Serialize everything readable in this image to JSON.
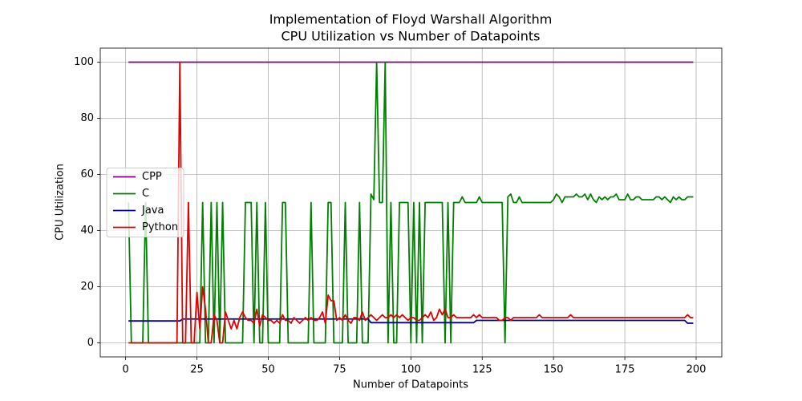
{
  "chart_data": {
    "type": "line",
    "title": "Implementation of Floyd Warshall Algorithm",
    "subtitle": "CPU Utilization vs Number of Datapoints",
    "xlabel": "Number of Datapoints",
    "ylabel": "CPU Utilization",
    "xlim": [
      -8.9,
      209
    ],
    "ylim": [
      -5,
      105
    ],
    "xticks": [
      0,
      25,
      50,
      75,
      100,
      125,
      150,
      175,
      200
    ],
    "yticks": [
      0,
      20,
      40,
      60,
      80,
      100
    ],
    "grid": true,
    "legend": "center left",
    "x": [
      1,
      2,
      3,
      4,
      5,
      6,
      7,
      8,
      9,
      10,
      11,
      12,
      13,
      14,
      15,
      16,
      17,
      18,
      19,
      20,
      21,
      22,
      23,
      24,
      25,
      26,
      27,
      28,
      29,
      30,
      31,
      32,
      33,
      34,
      35,
      36,
      37,
      38,
      39,
      40,
      41,
      42,
      43,
      44,
      45,
      46,
      47,
      48,
      49,
      50,
      51,
      52,
      53,
      54,
      55,
      56,
      57,
      58,
      59,
      60,
      61,
      62,
      63,
      64,
      65,
      66,
      67,
      68,
      69,
      70,
      71,
      72,
      73,
      74,
      75,
      76,
      77,
      78,
      79,
      80,
      81,
      82,
      83,
      84,
      85,
      86,
      87,
      88,
      89,
      90,
      91,
      92,
      93,
      94,
      95,
      96,
      97,
      98,
      99,
      100,
      101,
      102,
      103,
      104,
      105,
      106,
      107,
      108,
      109,
      110,
      111,
      112,
      113,
      114,
      115,
      116,
      117,
      118,
      119,
      120,
      121,
      122,
      123,
      124,
      125,
      126,
      127,
      128,
      129,
      130,
      131,
      132,
      133,
      134,
      135,
      136,
      137,
      138,
      139,
      140,
      141,
      142,
      143,
      144,
      145,
      146,
      147,
      148,
      149,
      150,
      151,
      152,
      153,
      154,
      155,
      156,
      157,
      158,
      159,
      160,
      161,
      162,
      163,
      164,
      165,
      166,
      167,
      168,
      169,
      170,
      171,
      172,
      173,
      174,
      175,
      176,
      177,
      178,
      179,
      180,
      181,
      182,
      183,
      184,
      185,
      186,
      187,
      188,
      189,
      190,
      191,
      192,
      193,
      194,
      195,
      196,
      197,
      198,
      199
    ],
    "series": [
      {
        "name": "CPP",
        "color": "#800080",
        "values": [
          100,
          100,
          100,
          100,
          100,
          100,
          100,
          100,
          100,
          100,
          100,
          100,
          100,
          100,
          100,
          100,
          100,
          100,
          100,
          100,
          100,
          100,
          100,
          100,
          100,
          100,
          100,
          100,
          100,
          100,
          100,
          100,
          100,
          100,
          100,
          100,
          100,
          100,
          100,
          100,
          100,
          100,
          100,
          100,
          100,
          100,
          100,
          100,
          100,
          100,
          100,
          100,
          100,
          100,
          100,
          100,
          100,
          100,
          100,
          100,
          100,
          100,
          100,
          100,
          100,
          100,
          100,
          100,
          100,
          100,
          100,
          100,
          100,
          100,
          100,
          100,
          100,
          100,
          100,
          100,
          100,
          100,
          100,
          100,
          100,
          100,
          100,
          100,
          100,
          100,
          100,
          100,
          100,
          100,
          100,
          100,
          100,
          100,
          100,
          100,
          100,
          100,
          100,
          100,
          100,
          100,
          100,
          100,
          100,
          100,
          100,
          100,
          100,
          100,
          100,
          100,
          100,
          100,
          100,
          100,
          100,
          100,
          100,
          100,
          100,
          100,
          100,
          100,
          100,
          100,
          100,
          100,
          100,
          100,
          100,
          100,
          100,
          100,
          100,
          100,
          100,
          100,
          100,
          100,
          100,
          100,
          100,
          100,
          100,
          100,
          100,
          100,
          100,
          100,
          100,
          100,
          100,
          100,
          100,
          100,
          100,
          100,
          100,
          100,
          100,
          100,
          100,
          100,
          100,
          100,
          100,
          100,
          100,
          100,
          100,
          100,
          100,
          100,
          100,
          100,
          100,
          100,
          100,
          100,
          100,
          100,
          100,
          100,
          100,
          100,
          100,
          100,
          100,
          100,
          100,
          100,
          100,
          100,
          100
        ]
      },
      {
        "name": "C",
        "color": "#008000",
        "values": [
          50,
          0,
          0,
          0,
          0,
          0,
          50,
          0,
          0,
          0,
          0,
          0,
          0,
          0,
          0,
          0,
          0,
          0,
          0,
          0,
          0,
          0,
          0,
          0,
          0,
          0,
          50,
          0,
          0,
          50,
          0,
          50,
          0,
          50,
          0,
          0,
          0,
          0,
          0,
          0,
          0,
          50,
          50,
          50,
          0,
          50,
          0,
          0,
          50,
          0,
          0,
          0,
          0,
          0,
          50,
          50,
          0,
          0,
          0,
          0,
          0,
          0,
          0,
          0,
          50,
          0,
          0,
          0,
          0,
          0,
          50,
          50,
          0,
          0,
          0,
          0,
          50,
          0,
          0,
          0,
          0,
          50,
          0,
          0,
          0,
          53,
          51,
          100,
          50,
          50,
          100,
          0,
          50,
          0,
          0,
          50,
          50,
          50,
          50,
          0,
          50,
          0,
          50,
          0,
          50,
          50,
          50,
          50,
          50,
          50,
          50,
          0,
          50,
          0,
          50,
          50,
          50,
          52,
          50,
          50,
          50,
          50,
          50,
          52,
          50,
          50,
          50,
          50,
          50,
          50,
          50,
          50,
          0,
          52,
          53,
          50,
          50,
          52,
          50,
          50,
          50,
          50,
          50,
          50,
          50,
          50,
          50,
          50,
          50,
          51,
          53,
          52,
          50,
          52,
          52,
          52,
          52,
          53,
          52,
          52,
          53,
          51,
          53,
          51,
          50,
          52,
          51,
          52,
          51,
          52,
          52,
          53,
          51,
          51,
          51,
          53,
          51,
          51,
          52,
          52,
          51,
          51,
          51,
          51,
          51,
          52,
          52,
          51,
          52,
          51,
          50,
          52,
          51,
          52,
          51,
          51,
          52,
          52,
          52
        ]
      },
      {
        "name": "Java",
        "color": "#00008b",
        "values": [
          7.8,
          7.8,
          7.8,
          7.8,
          7.8,
          7.8,
          7.8,
          7.8,
          7.8,
          7.8,
          7.8,
          7.8,
          7.8,
          7.8,
          7.8,
          7.8,
          7.8,
          7.8,
          7.8,
          8.5,
          8.5,
          8.5,
          8.5,
          8.5,
          8.5,
          8.5,
          8.5,
          8.5,
          8.5,
          8.5,
          8.5,
          8.5,
          8.5,
          8.5,
          8.5,
          8.5,
          8.5,
          8.5,
          8.5,
          8.5,
          8.5,
          8.5,
          8.5,
          8.5,
          8.5,
          8.5,
          8.5,
          8.5,
          8.5,
          8.5,
          8.5,
          8.5,
          8.5,
          8.5,
          8.5,
          8.5,
          8.5,
          8.5,
          8.5,
          8.5,
          8.5,
          8.5,
          8.5,
          8.5,
          8.5,
          8.5,
          8.5,
          8.5,
          8.5,
          8.5,
          8.5,
          8.5,
          8.5,
          8.5,
          8.5,
          8.5,
          8.5,
          8.5,
          8.5,
          8.5,
          8.5,
          8.5,
          8.5,
          8.5,
          8.5,
          7.2,
          7.2,
          7.2,
          7.2,
          7.2,
          7.2,
          7.2,
          7.2,
          7.2,
          7.2,
          7.2,
          7.2,
          7.2,
          7.2,
          7.2,
          7.2,
          7.2,
          7.2,
          7.2,
          7.2,
          7.2,
          7.2,
          7.2,
          7.2,
          7.2,
          7.2,
          7.2,
          7.2,
          7.2,
          7.2,
          7.2,
          7.2,
          7.2,
          7.2,
          7.2,
          7.2,
          7.2,
          8,
          8,
          8,
          8,
          8,
          8,
          8,
          8,
          8,
          8,
          8,
          8,
          8,
          8,
          8,
          8,
          8,
          8,
          8,
          8,
          8,
          8,
          8,
          8,
          8,
          8,
          8,
          8,
          8,
          8,
          8,
          8,
          8,
          8,
          8,
          8,
          8,
          8,
          8,
          8,
          8,
          8,
          8,
          8,
          8,
          8,
          8,
          8,
          8,
          8,
          8,
          8,
          8,
          8,
          8,
          8,
          8,
          8,
          8,
          8,
          8,
          8,
          8,
          8,
          8,
          8,
          8,
          8,
          8,
          8,
          8,
          8,
          8,
          8,
          7,
          7,
          7
        ]
      },
      {
        "name": "Python",
        "color": "#e00000",
        "values": [
          0,
          0,
          0,
          0,
          0,
          0,
          0,
          0,
          0,
          0,
          0,
          0,
          0,
          0,
          0,
          0,
          0,
          0,
          100,
          0,
          0,
          50,
          0,
          0,
          18,
          5,
          20,
          12,
          0,
          0,
          10,
          8,
          0,
          0,
          11,
          8,
          5,
          8,
          5,
          9,
          11,
          9,
          8,
          8,
          7,
          12,
          6,
          10,
          9,
          8,
          8,
          7,
          8,
          7,
          10,
          8,
          8,
          7,
          9,
          8,
          7,
          8,
          9,
          8,
          9,
          8,
          8,
          9,
          11,
          7,
          17,
          15,
          15,
          8,
          9,
          8,
          10,
          8,
          7,
          9,
          9,
          8,
          11,
          8,
          9,
          10,
          9,
          8,
          9,
          10,
          9,
          9,
          10,
          9,
          10,
          9,
          10,
          9,
          8,
          9,
          9,
          8,
          8,
          9,
          10,
          9,
          11,
          8,
          9,
          12,
          10,
          12,
          9,
          9,
          10,
          9,
          9,
          9,
          9,
          9,
          9,
          10,
          9,
          10,
          9,
          9,
          9,
          9,
          9,
          9,
          8,
          8,
          9,
          9,
          8,
          9,
          9,
          9,
          9,
          9,
          9,
          9,
          9,
          9,
          10,
          9,
          9,
          9,
          9,
          9,
          9,
          9,
          9,
          9,
          9,
          10,
          9,
          9,
          9,
          9,
          9,
          9,
          9,
          9,
          9,
          9,
          9,
          9,
          9,
          9,
          9,
          9,
          9,
          9,
          9,
          9,
          9,
          9,
          9,
          9,
          9,
          9,
          9,
          9,
          9,
          9,
          9,
          9,
          9,
          9,
          9,
          9,
          9,
          9,
          9,
          9,
          10,
          9,
          9
        ]
      }
    ]
  }
}
